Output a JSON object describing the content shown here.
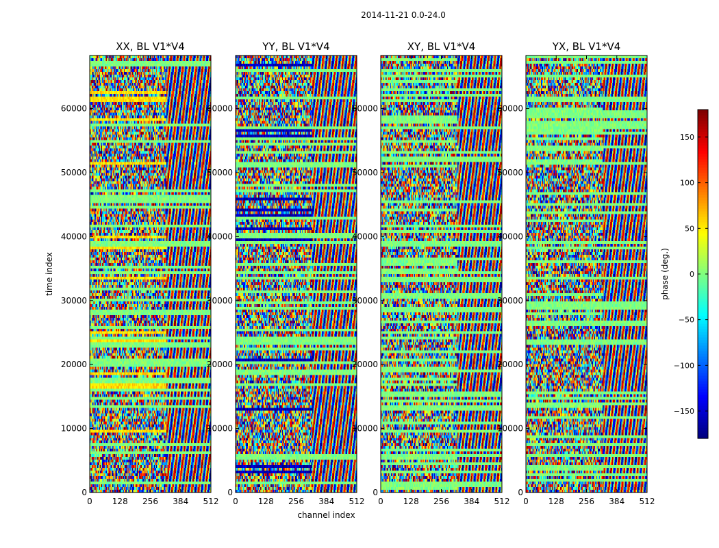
{
  "figure_title": "2014-11-21 0.0-24.0",
  "chart_data": [
    {
      "type": "heatmap",
      "title": "XX, BL V1*V4",
      "xlabel": "",
      "ylabel": "time index",
      "x_ticks": [
        0,
        128,
        256,
        384,
        512
      ],
      "y_ticks": [
        0,
        10000,
        20000,
        30000,
        40000,
        50000,
        60000
      ],
      "xlim": [
        0,
        512
      ],
      "ylim": [
        0,
        68300
      ],
      "value_range": [
        -180,
        180
      ]
    },
    {
      "type": "heatmap",
      "title": "YY, BL V1*V4",
      "xlabel": "channel index",
      "ylabel": "",
      "x_ticks": [
        0,
        128,
        256,
        384,
        512
      ],
      "y_ticks": [
        0,
        10000,
        20000,
        30000,
        40000,
        50000,
        60000
      ],
      "xlim": [
        0,
        512
      ],
      "ylim": [
        0,
        68300
      ],
      "value_range": [
        -180,
        180
      ]
    },
    {
      "type": "heatmap",
      "title": "XY, BL V1*V4",
      "xlabel": "",
      "ylabel": "",
      "x_ticks": [
        0,
        128,
        256,
        384,
        512
      ],
      "y_ticks": [
        0,
        10000,
        20000,
        30000,
        40000,
        50000,
        60000
      ],
      "xlim": [
        0,
        512
      ],
      "ylim": [
        0,
        68300
      ],
      "value_range": [
        -180,
        180
      ]
    },
    {
      "type": "heatmap",
      "title": "YX, BL V1*V4",
      "xlabel": "",
      "ylabel": "",
      "x_ticks": [
        0,
        128,
        256,
        384,
        512
      ],
      "y_ticks": [
        0,
        10000,
        20000,
        30000,
        40000,
        50000,
        60000
      ],
      "xlim": [
        0,
        512
      ],
      "ylim": [
        0,
        68300
      ],
      "value_range": [
        -180,
        180
      ]
    }
  ],
  "colorbar": {
    "label": "phase (deg.)",
    "ticks": [
      -150,
      -100,
      -50,
      0,
      50,
      100,
      150
    ],
    "range": [
      -180,
      180
    ],
    "colormap": "jet"
  }
}
